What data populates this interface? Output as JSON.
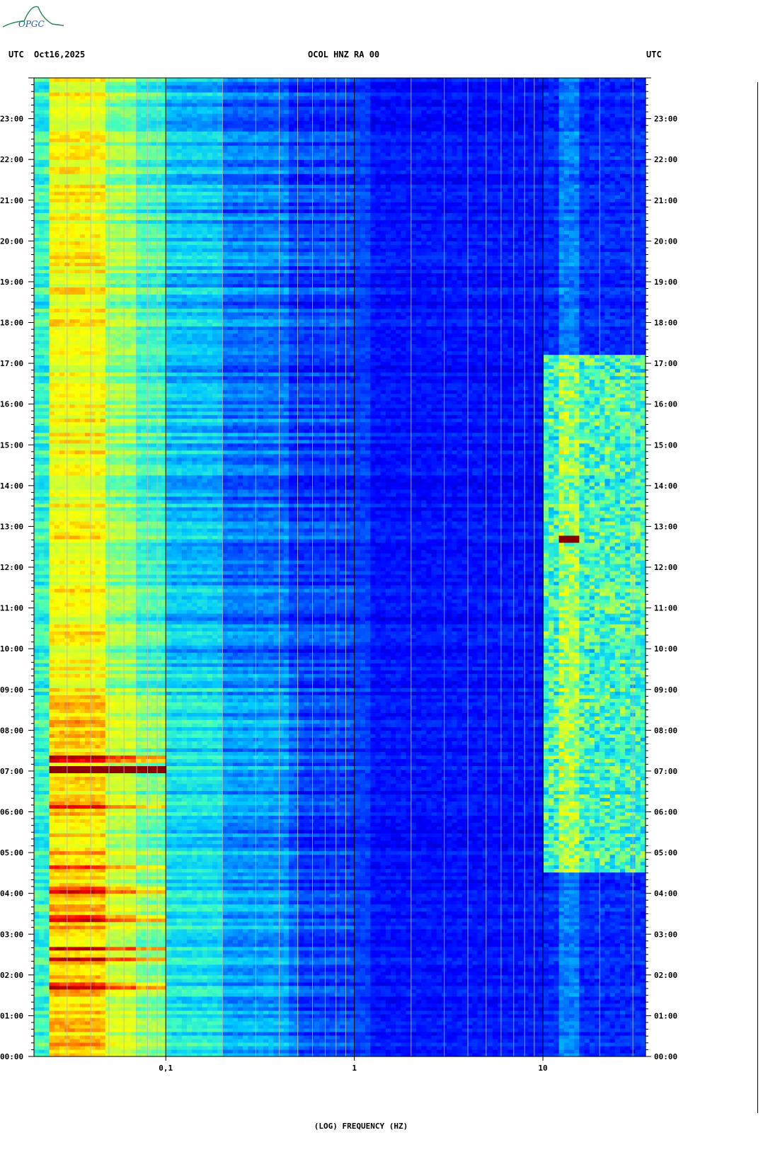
{
  "header": {
    "left_tz": "UTC",
    "date": "Oct16,2025",
    "station": "OCOL HNZ RA 00",
    "right_tz": "UTC"
  },
  "logo": {
    "text": "OPGC",
    "color": "#2e8b57"
  },
  "chart_data": {
    "type": "heatmap",
    "title": "OCOL HNZ RA 00",
    "xlabel": "(LOG) FREQUENCY (HZ)",
    "x_scale": "log",
    "xlim": [
      0.02,
      35
    ],
    "x_tick_labels": [
      {
        "value": 0.1,
        "label": "0,1"
      },
      {
        "value": 1,
        "label": "1"
      },
      {
        "value": 10,
        "label": "10"
      }
    ],
    "x_minor_grid": [
      0.03,
      0.04,
      0.05,
      0.06,
      0.07,
      0.08,
      0.09,
      0.2,
      0.3,
      0.4,
      0.5,
      0.6,
      0.7,
      0.8,
      0.9,
      2,
      3,
      4,
      5,
      6,
      7,
      8,
      9,
      20,
      30
    ],
    "y_time_hours": [
      0,
      24
    ],
    "y_tick_labels": [
      "00:00",
      "01:00",
      "02:00",
      "03:00",
      "04:00",
      "05:00",
      "06:00",
      "07:00",
      "08:00",
      "09:00",
      "10:00",
      "11:00",
      "12:00",
      "13:00",
      "14:00",
      "15:00",
      "16:00",
      "17:00",
      "18:00",
      "19:00",
      "20:00",
      "21:00",
      "22:00",
      "23:00"
    ],
    "colormap": [
      "#00008b",
      "#0000ff",
      "#0060ff",
      "#00c8ff",
      "#40ffc0",
      "#c0ff40",
      "#ffff00",
      "#ff8000",
      "#ff0000",
      "#8b0000"
    ],
    "notable_events": [
      {
        "hour": 7.05,
        "freq_range": [
          0.025,
          0.1
        ],
        "level": "max"
      },
      {
        "hour": 12.7,
        "freq_range": [
          12,
          16
        ],
        "level": "max"
      },
      {
        "hour_range": [
          4.5,
          17.2
        ],
        "freq_range": [
          10,
          35
        ],
        "level": "elevated"
      }
    ]
  }
}
